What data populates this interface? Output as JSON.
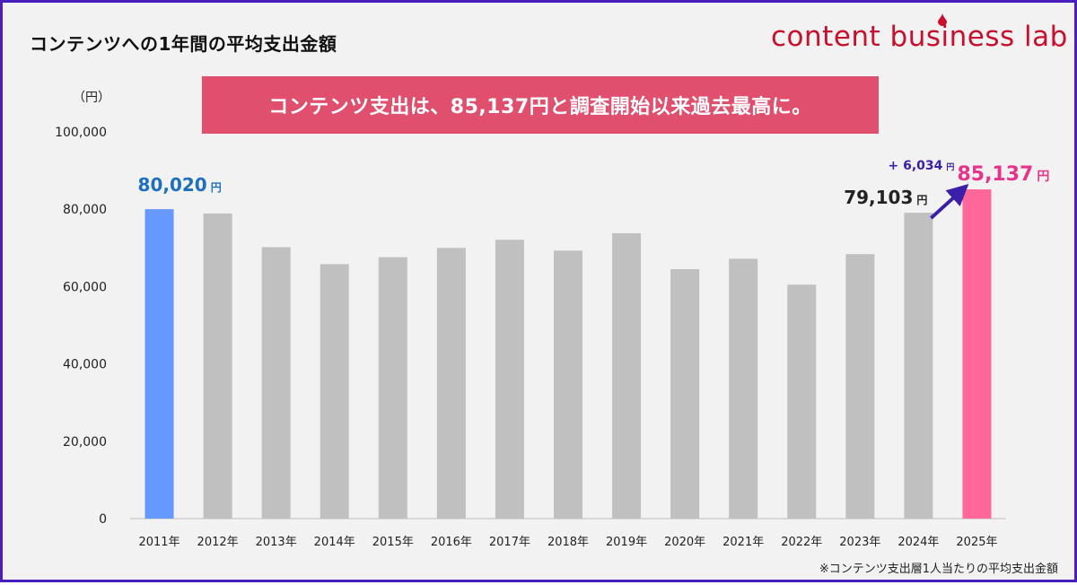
{
  "header": {
    "title": "コンテンツへの1年間の平均支出金額",
    "logo_text": "content business lab"
  },
  "banner": {
    "text": "コンテンツ支出は、85,137円と調査開始以来過去最高に。",
    "color": "#e0506e"
  },
  "footnote": "※コンテンツ支出層1人当たりの平均支出金額",
  "chart_data": {
    "type": "bar",
    "unit_label": "（円）",
    "categories": [
      "2011年",
      "2012年",
      "2013年",
      "2014年",
      "2015年",
      "2016年",
      "2017年",
      "2018年",
      "2019年",
      "2020年",
      "2021年",
      "2022年",
      "2023年",
      "2024年",
      "2025年"
    ],
    "values": [
      80020,
      78900,
      70200,
      65800,
      67600,
      70000,
      72100,
      69300,
      73800,
      64500,
      67200,
      60500,
      68400,
      79103,
      85137
    ],
    "ylim": [
      0,
      100000
    ],
    "yticks": [
      "0",
      "20,000",
      "40,000",
      "60,000",
      "80,000",
      "100,000"
    ],
    "grid": false,
    "colors": {
      "default": "#c0c0c0",
      "first": "#6699ff",
      "last": "#ff6699"
    },
    "annotations": {
      "first_value": "80,020",
      "first_unit": "円",
      "prev_value": "79,103",
      "prev_unit": "円",
      "last_value": "85,137",
      "last_unit": "円",
      "delta": "+ 6,034",
      "delta_unit": "円"
    },
    "annotation_colors": {
      "first": "#1f6fbf",
      "prev": "#222222",
      "last": "#e8338a",
      "delta": "#3a1fa8",
      "arrow": "#3a1fa8"
    }
  }
}
